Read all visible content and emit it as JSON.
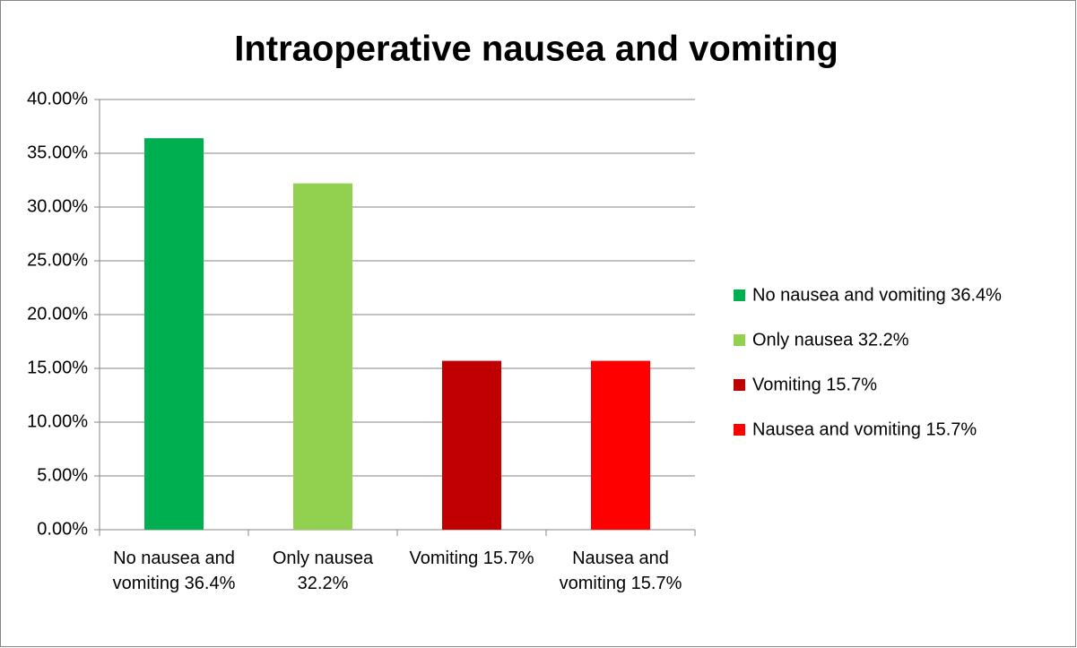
{
  "chart_data": {
    "type": "bar",
    "title": "Intraoperative nausea and vomiting",
    "categories": [
      "No nausea and vomiting 36.4%",
      "Only nausea 32.2%",
      "Vomiting 15.7%",
      "Nausea and vomiting 15.7%"
    ],
    "values": [
      36.4,
      32.2,
      15.7,
      15.7
    ],
    "colors": [
      "#00b050",
      "#92d050",
      "#c00000",
      "#ff0000"
    ],
    "ylim": [
      0,
      40
    ],
    "yticks": [
      {
        "value": 0,
        "label": "0.00%"
      },
      {
        "value": 5,
        "label": "5.00%"
      },
      {
        "value": 10,
        "label": "10.00%"
      },
      {
        "value": 15,
        "label": "15.00%"
      },
      {
        "value": 20,
        "label": "20.00%"
      },
      {
        "value": 25,
        "label": "25.00%"
      },
      {
        "value": 30,
        "label": "30.00%"
      },
      {
        "value": 35,
        "label": "35.00%"
      },
      {
        "value": 40,
        "label": "40.00%"
      }
    ],
    "grid": true,
    "legend": "right"
  }
}
